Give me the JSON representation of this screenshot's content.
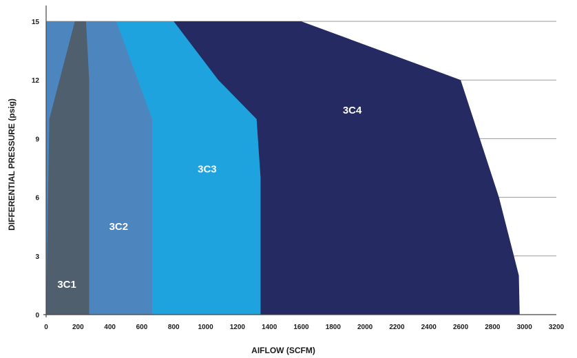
{
  "chart_data": {
    "type": "area",
    "title": "",
    "xlabel": "AIFLOW (SCFM)",
    "ylabel": "DIFFERENTIAL PRESSURE (psig)",
    "xlim": [
      0,
      3200
    ],
    "ylim": [
      0,
      15
    ],
    "x_ticks": [
      "0",
      "200",
      "400",
      "600",
      "800",
      "1000",
      "1200",
      "1400",
      "1600",
      "1800",
      "2000",
      "2200",
      "2400",
      "2600",
      "2800",
      "3000",
      "3200"
    ],
    "y_ticks": [
      "0",
      "3",
      "6",
      "9",
      "12",
      "15"
    ],
    "grid": "horizontal",
    "series": [
      {
        "name": "3C4",
        "color": "#252a62",
        "outline": [
          [
            0,
            0
          ],
          [
            2970,
            0
          ],
          [
            2965,
            2
          ],
          [
            2840,
            6
          ],
          [
            2600,
            12
          ],
          [
            1600,
            15
          ],
          [
            0,
            15
          ]
        ]
      },
      {
        "name": "3C3",
        "color": "#1fa3de",
        "outline": [
          [
            0,
            0
          ],
          [
            1345,
            0
          ],
          [
            1345,
            7
          ],
          [
            1320,
            10
          ],
          [
            1080,
            12
          ],
          [
            800,
            15
          ],
          [
            0,
            15
          ]
        ]
      },
      {
        "name": "3C2",
        "color": "#4d86bf",
        "outline": [
          [
            0,
            0
          ],
          [
            665,
            0
          ],
          [
            665,
            10
          ],
          [
            440,
            15
          ],
          [
            0,
            15
          ]
        ]
      },
      {
        "name": "3C1",
        "color": "#4f5f6d",
        "outline": [
          [
            0,
            0
          ],
          [
            270,
            0
          ],
          [
            270,
            12
          ],
          [
            250,
            15
          ],
          [
            180,
            15
          ],
          [
            20,
            10
          ],
          [
            0,
            0
          ]
        ]
      }
    ],
    "labels": [
      {
        "text": "3C1",
        "x": 130,
        "y": 1.55
      },
      {
        "text": "3C2",
        "x": 455,
        "y": 4.5
      },
      {
        "text": "3C3",
        "x": 1010,
        "y": 7.45
      },
      {
        "text": "3C4",
        "x": 1920,
        "y": 10.45
      }
    ]
  }
}
